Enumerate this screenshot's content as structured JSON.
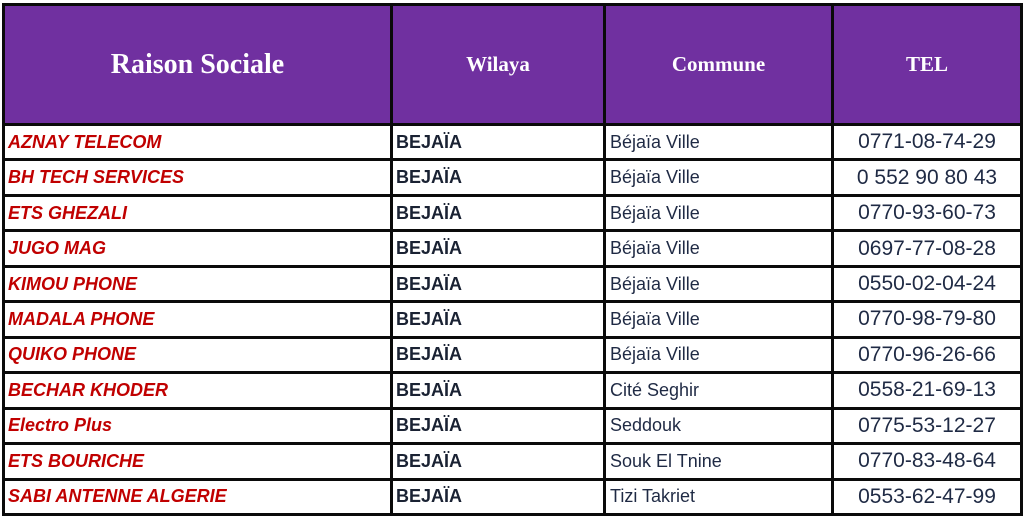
{
  "headers": {
    "raison_sociale": "Raison Sociale",
    "wilaya": "Wilaya",
    "commune": "Commune",
    "tel": "TEL"
  },
  "rows": [
    {
      "name": "AZNAY TELECOM",
      "wilaya": "BEJAÏA",
      "commune": "Béjaïa Ville",
      "tel": "0771-08-74-29"
    },
    {
      "name": "BH TECH SERVICES",
      "wilaya": "BEJAÏA",
      "commune": "Béjaïa Ville",
      "tel": "0 552 90 80 43"
    },
    {
      "name": "ETS GHEZALI",
      "wilaya": "BEJAÏA",
      "commune": "Béjaïa Ville",
      "tel": "0770-93-60-73"
    },
    {
      "name": "JUGO MAG",
      "wilaya": "BEJAÏA",
      "commune": "Béjaïa Ville",
      "tel": "0697-77-08-28"
    },
    {
      "name": "KIMOU PHONE",
      "wilaya": "BEJAÏA",
      "commune": "Béjaïa Ville",
      "tel": "0550-02-04-24"
    },
    {
      "name": "MADALA PHONE",
      "wilaya": "BEJAÏA",
      "commune": "Béjaïa Ville",
      "tel": "0770-98-79-80"
    },
    {
      "name": "QUIKO PHONE",
      "wilaya": "BEJAÏA",
      "commune": "Béjaïa Ville",
      "tel": "0770-96-26-66"
    },
    {
      "name": "BECHAR KHODER",
      "wilaya": "BEJAÏA",
      "commune": "Cité Seghir",
      "tel": "0558-21-69-13"
    },
    {
      "name": "Electro Plus",
      "wilaya": "BEJAÏA",
      "commune": "Seddouk",
      "tel": "0775-53-12-27"
    },
    {
      "name": "ETS BOURICHE",
      "wilaya": "BEJAÏA",
      "commune": "Souk El Tnine",
      "tel": "0770-83-48-64"
    },
    {
      "name": "SABI ANTENNE ALGERIE",
      "wilaya": "BEJAÏA",
      "commune": "Tizi Takriet",
      "tel": "0553-62-47-99"
    }
  ],
  "colors": {
    "header_bg": "#7030a0",
    "header_text": "#ffffff",
    "name_text": "#c00000",
    "body_text": "#1f2a44",
    "border": "#0a0a0a"
  }
}
